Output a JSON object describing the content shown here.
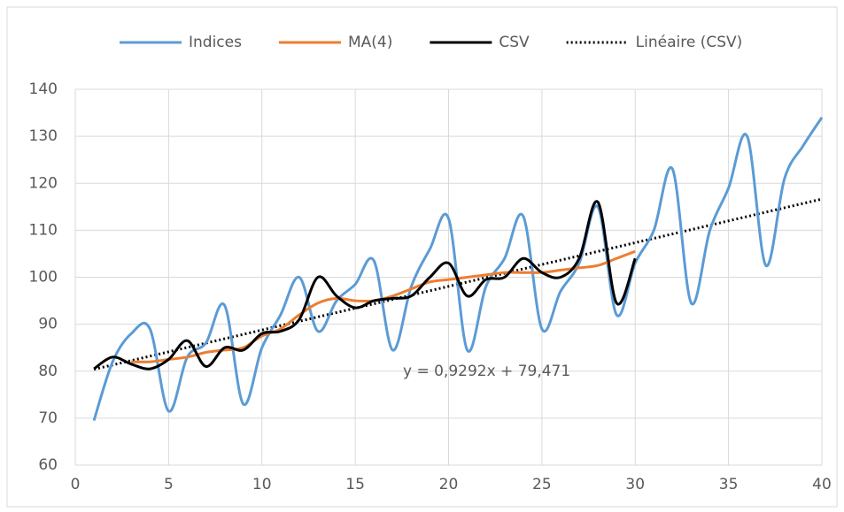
{
  "chart_data": {
    "type": "line",
    "series": [
      {
        "name": "Indices",
        "color": "#5b9bd5",
        "style": "solid",
        "x": [
          1,
          2,
          3,
          4,
          5,
          6,
          7,
          8,
          9,
          10,
          11,
          12,
          13,
          14,
          15,
          16,
          17,
          18,
          19,
          20,
          21,
          22,
          23,
          24,
          25,
          26,
          27,
          28,
          29,
          30,
          31,
          32,
          33,
          34,
          35,
          36,
          37,
          38,
          39,
          40
        ],
        "values": [
          69.5,
          82,
          88,
          89,
          71.5,
          83,
          86,
          94,
          73,
          85,
          92,
          100,
          88.5,
          95,
          98.5,
          103.5,
          84.5,
          98,
          106,
          112.5,
          84.5,
          98,
          104,
          113,
          89,
          97,
          103,
          115,
          92,
          103,
          110,
          123,
          94.5,
          110,
          119,
          130,
          102.5,
          121,
          128,
          134
        ]
      },
      {
        "name": "MA(4)",
        "color": "#ed7d31",
        "style": "solid",
        "x": [
          3,
          4,
          5,
          6,
          7,
          8,
          9,
          10,
          11,
          12,
          13,
          14,
          15,
          16,
          17,
          18,
          19,
          20,
          21,
          22,
          23,
          24,
          25,
          26,
          27,
          28,
          29,
          30
        ],
        "values": [
          82,
          82,
          82.5,
          83,
          84,
          84.5,
          85,
          87.5,
          89,
          92,
          94.5,
          95.5,
          95,
          95,
          96,
          97.5,
          99,
          99.5,
          100,
          100.5,
          101,
          101,
          101,
          101.5,
          102,
          102.5,
          104,
          105.5
        ]
      },
      {
        "name": "CSV",
        "color": "#000000",
        "style": "solid",
        "x": [
          1,
          2,
          3,
          4,
          5,
          6,
          7,
          8,
          9,
          10,
          11,
          12,
          13,
          14,
          15,
          16,
          17,
          18,
          19,
          20,
          21,
          22,
          23,
          24,
          25,
          26,
          27,
          28,
          29,
          30
        ],
        "values": [
          80.5,
          83,
          81.5,
          80.5,
          82.5,
          86.5,
          81,
          85,
          84.5,
          88,
          88.5,
          91,
          100,
          96,
          93.5,
          95,
          95.5,
          96,
          100,
          103,
          96,
          99.5,
          100,
          104,
          101,
          100,
          104,
          116,
          94.5,
          104
        ]
      }
    ],
    "trendline": {
      "name": "Linéaire (CSV)",
      "color": "#000000",
      "slope": 0.9292,
      "intercept": 79.471,
      "x_range": [
        1,
        40
      ],
      "equation": "y = 0,9292x + 79,471"
    },
    "xlim": [
      0,
      40
    ],
    "xticks": [
      0,
      5,
      10,
      15,
      20,
      25,
      30,
      35,
      40
    ],
    "ylim": [
      60,
      140
    ],
    "yticks": [
      60,
      70,
      80,
      90,
      100,
      110,
      120,
      130,
      140
    ],
    "grid": true,
    "legend": "top"
  }
}
